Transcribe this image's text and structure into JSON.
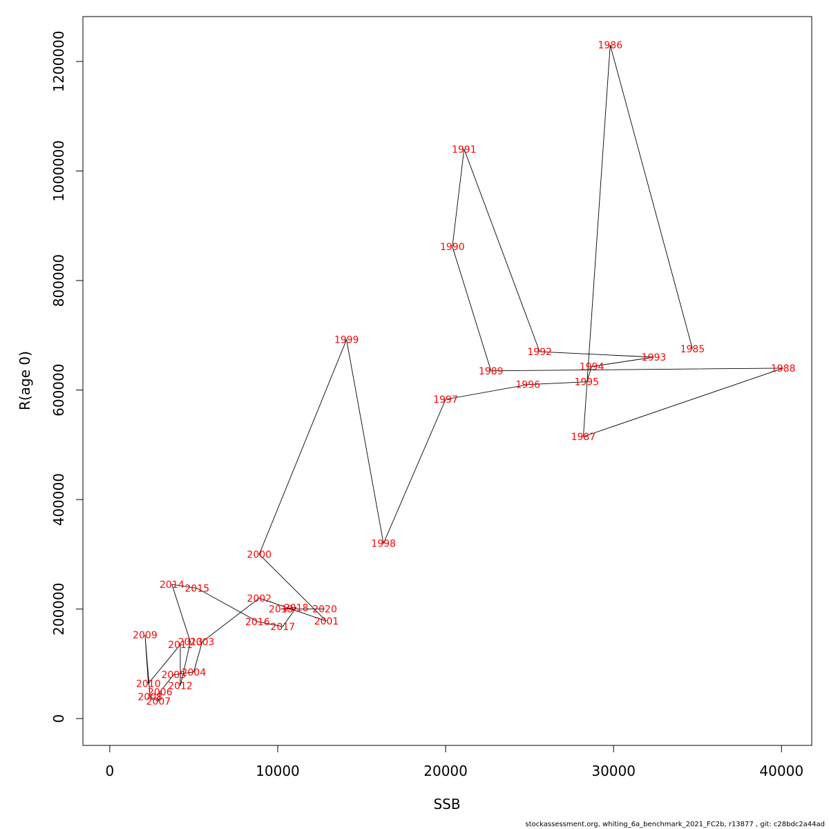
{
  "chart_data": {
    "type": "line",
    "xlabel": "SSB",
    "ylabel": "R(age 0)",
    "xlim": [
      -1600,
      41800
    ],
    "ylim": [
      -49000,
      1282000
    ],
    "x_ticks": [
      0,
      10000,
      20000,
      30000,
      40000
    ],
    "y_ticks": [
      0,
      200000,
      400000,
      600000,
      800000,
      1000000,
      1200000
    ],
    "grid": false,
    "colors": {
      "line": "#000000",
      "labels": "#ff0000"
    },
    "points": [
      {
        "year": "1985",
        "x": 34700,
        "y": 675000
      },
      {
        "year": "1986",
        "x": 29800,
        "y": 1230000
      },
      {
        "year": "1987",
        "x": 28200,
        "y": 515000
      },
      {
        "year": "1988",
        "x": 40100,
        "y": 640000
      },
      {
        "year": "1989",
        "x": 22700,
        "y": 635000
      },
      {
        "year": "1990",
        "x": 20400,
        "y": 862000
      },
      {
        "year": "1991",
        "x": 21100,
        "y": 1040000
      },
      {
        "year": "1992",
        "x": 25600,
        "y": 670000
      },
      {
        "year": "1993",
        "x": 32400,
        "y": 660000
      },
      {
        "year": "1994",
        "x": 28700,
        "y": 643000
      },
      {
        "year": "1995",
        "x": 28400,
        "y": 615000
      },
      {
        "year": "1996",
        "x": 24900,
        "y": 610000
      },
      {
        "year": "1997",
        "x": 20000,
        "y": 583000
      },
      {
        "year": "1998",
        "x": 16300,
        "y": 320000
      },
      {
        "year": "1999",
        "x": 14100,
        "y": 692000
      },
      {
        "year": "2000",
        "x": 8900,
        "y": 300000
      },
      {
        "year": "2001",
        "x": 12900,
        "y": 178000
      },
      {
        "year": "2002",
        "x": 8900,
        "y": 220000
      },
      {
        "year": "2003",
        "x": 5500,
        "y": 140000
      },
      {
        "year": "2004",
        "x": 5000,
        "y": 85000
      },
      {
        "year": "2005",
        "x": 3800,
        "y": 80000
      },
      {
        "year": "2006",
        "x": 3000,
        "y": 49000
      },
      {
        "year": "2007",
        "x": 2900,
        "y": 32000
      },
      {
        "year": "2008",
        "x": 2400,
        "y": 40000
      },
      {
        "year": "2009",
        "x": 2100,
        "y": 153000
      },
      {
        "year": "2010",
        "x": 2300,
        "y": 64000
      },
      {
        "year": "2011",
        "x": 4200,
        "y": 135000
      },
      {
        "year": "2012",
        "x": 4200,
        "y": 60000
      },
      {
        "year": "2013",
        "x": 4800,
        "y": 140000
      },
      {
        "year": "2014",
        "x": 3700,
        "y": 245000
      },
      {
        "year": "2015",
        "x": 5200,
        "y": 238000
      },
      {
        "year": "2016",
        "x": 8800,
        "y": 177000
      },
      {
        "year": "2017",
        "x": 10300,
        "y": 168000
      },
      {
        "year": "2018",
        "x": 11100,
        "y": 203000
      },
      {
        "year": "2019",
        "x": 10200,
        "y": 200000
      },
      {
        "year": "2020",
        "x": 12800,
        "y": 200000
      }
    ]
  },
  "footer": "stockassessment.org, whiting_6a_benchmark_2021_FC2b, r13877 , git: c28bdc2a44ad"
}
